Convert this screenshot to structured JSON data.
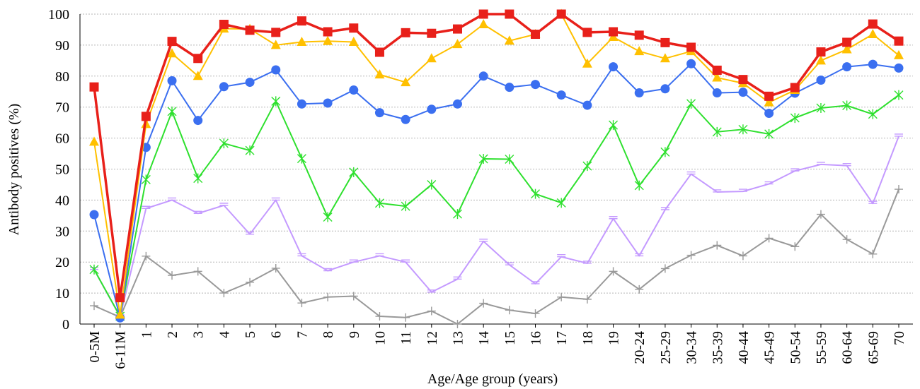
{
  "chart_data": {
    "type": "line",
    "xlabel": "Age/Age group (years)",
    "ylabel": "Antibody positives  (%)",
    "ylim": [
      0,
      100
    ],
    "yticks": [
      0,
      10,
      20,
      30,
      40,
      50,
      60,
      70,
      80,
      90,
      100
    ],
    "grid": "horizontal dotted",
    "legend": "none",
    "categories": [
      "0-5M",
      "6-11M",
      "1",
      "2",
      "3",
      "4",
      "5",
      "6",
      "7",
      "8",
      "9",
      "10",
      "11",
      "12",
      "13",
      "14",
      "15",
      "16",
      "17",
      "18",
      "19",
      "20-24",
      "25-29",
      "30-34",
      "35-39",
      "40-44",
      "45-49",
      "50-54",
      "55-59",
      "60-64",
      "65-69",
      "70"
    ],
    "series": [
      {
        "color": "#e8201a",
        "marker": "square",
        "values": [
          76.5,
          8.5,
          67.0,
          91.2,
          85.7,
          96.7,
          94.8,
          94.1,
          97.8,
          94.3,
          95.5,
          87.7,
          94.0,
          93.8,
          95.2,
          100,
          100,
          93.5,
          100,
          94.1,
          94.3,
          93.2,
          90.8,
          89.3,
          81.9,
          78.9,
          73.5,
          76.3,
          87.8,
          90.9,
          96.8,
          91.3
        ]
      },
      {
        "color": "#ffc000",
        "marker": "triangle",
        "values": [
          58.8,
          3.0,
          64.5,
          87.3,
          80.0,
          95.3,
          95.2,
          90.0,
          91.0,
          91.3,
          91.0,
          80.5,
          78.0,
          85.7,
          90.3,
          96.7,
          91.4,
          93.5,
          100,
          84.0,
          92.6,
          88.0,
          85.7,
          88.0,
          79.5,
          77.7,
          71.5,
          75.5,
          85.0,
          88.6,
          93.5,
          86.7
        ]
      },
      {
        "color": "#3b6ff0",
        "marker": "circle",
        "values": [
          35.3,
          2.0,
          57.0,
          78.5,
          65.7,
          76.6,
          78.0,
          82.0,
          71.0,
          71.3,
          75.5,
          68.2,
          66.0,
          69.3,
          71.0,
          80.0,
          76.4,
          77.3,
          73.9,
          70.6,
          83.0,
          74.6,
          75.9,
          84.0,
          74.6,
          74.8,
          68.0,
          74.5,
          78.7,
          83.0,
          83.8,
          82.6
        ]
      },
      {
        "color": "#2ee02e",
        "marker": "star",
        "values": [
          17.6,
          2.5,
          46.6,
          68.6,
          47.0,
          58.3,
          56.0,
          71.9,
          53.4,
          34.5,
          49.0,
          39.0,
          38.0,
          45.0,
          35.5,
          53.3,
          53.2,
          42.0,
          39.1,
          51.0,
          64.2,
          44.7,
          55.5,
          71.1,
          62.0,
          62.8,
          61.3,
          66.5,
          69.7,
          70.5,
          67.7,
          73.9
        ]
      },
      {
        "color": "#c49aff",
        "marker": "dash",
        "values": [
          17.6,
          2.3,
          37.3,
          40.0,
          35.7,
          38.3,
          29.0,
          40.0,
          22.0,
          17.2,
          20.0,
          22.0,
          20.0,
          10.3,
          14.5,
          26.7,
          19.1,
          13.0,
          21.7,
          19.6,
          34.0,
          22.0,
          36.9,
          48.4,
          42.6,
          42.8,
          45.2,
          49.4,
          51.5,
          51.1,
          38.9,
          60.6
        ]
      },
      {
        "color": "#999999",
        "marker": "plus",
        "values": [
          5.9,
          2.2,
          21.9,
          15.7,
          17.0,
          10.0,
          13.5,
          18.0,
          6.8,
          8.7,
          9.0,
          2.5,
          2.1,
          4.2,
          0,
          6.7,
          4.5,
          3.4,
          8.7,
          8.0,
          17.0,
          11.2,
          17.9,
          22.2,
          25.4,
          22.0,
          27.7,
          25.0,
          35.4,
          27.3,
          22.6,
          43.5
        ]
      }
    ]
  }
}
